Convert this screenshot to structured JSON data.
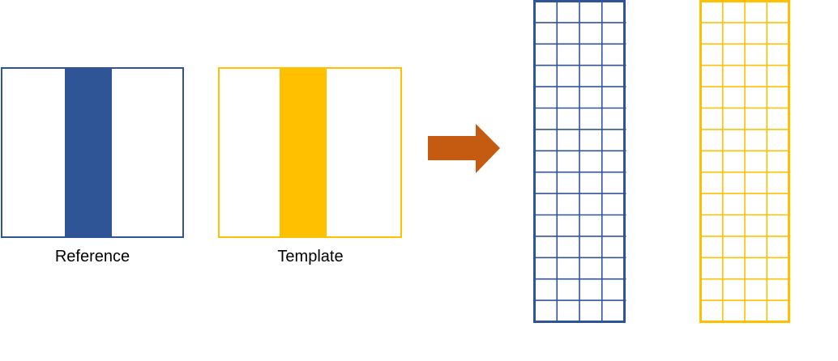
{
  "labels": {
    "reference": "Reference",
    "template": "Template"
  },
  "colors": {
    "reference": "#2f5597",
    "template": "#ffc000",
    "arrow": "#c55a11"
  },
  "grid": {
    "columns": 4,
    "rows": 15
  }
}
